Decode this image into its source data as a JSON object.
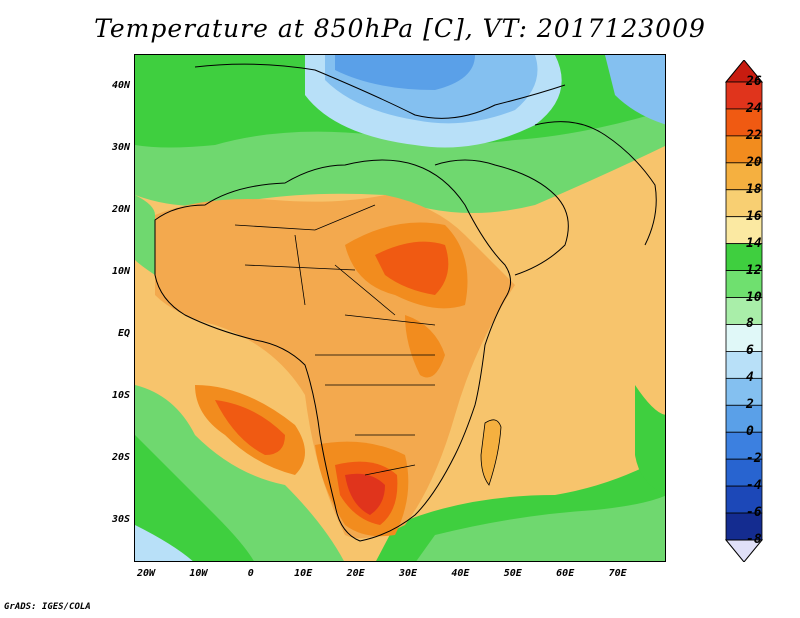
{
  "title": "Temperature at 850hPa [C], VT: 2017123009",
  "credit": "GrADS: IGES/COLA",
  "lat_labels": [
    "40N",
    "30N",
    "20N",
    "10N",
    "EQ",
    "10S",
    "20S",
    "30S"
  ],
  "lon_labels": [
    "20W",
    "10W",
    "0",
    "10E",
    "20E",
    "30E",
    "40E",
    "50E",
    "60E",
    "70E"
  ],
  "colorbar": {
    "labels": [
      "26",
      "24",
      "22",
      "20",
      "18",
      "16",
      "14",
      "12",
      "10",
      "8",
      "6",
      "4",
      "2",
      "0",
      "-2",
      "-4",
      "-6",
      "-8"
    ],
    "colors": [
      "#e0341c",
      "#f05a12",
      "#f28c1e",
      "#f5b040",
      "#f8cf72",
      "#fbe9a2",
      "#3fcf3f",
      "#6fe06f",
      "#a9eea9",
      "#e0f8f8",
      "#b8e0f8",
      "#84c0f0",
      "#5aa0e8",
      "#3c80e0",
      "#2864d0",
      "#1c48b8",
      "#142c90",
      "#0c1870"
    ],
    "top_arrow": "#c81c10",
    "bottom_arrow": "#e0e0f8"
  },
  "map": {
    "ocean_color": "#f6c26a",
    "land_color": "#f3a94e"
  }
}
